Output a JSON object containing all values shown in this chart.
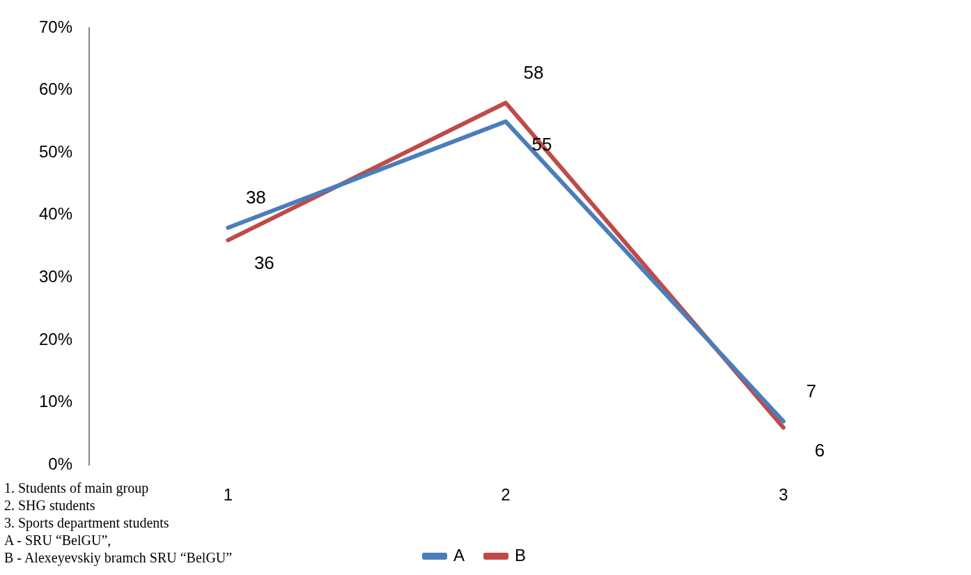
{
  "chart_data": {
    "type": "line",
    "categories": [
      "1",
      "2",
      "3"
    ],
    "series": [
      {
        "name": "A",
        "color": "#4a7ebb",
        "values": [
          38,
          55,
          7
        ]
      },
      {
        "name": "B",
        "color": "#be4b48",
        "values": [
          36,
          58,
          6
        ]
      }
    ],
    "ylim": [
      0,
      70
    ],
    "yticks": [
      {
        "value": 0,
        "label": "0%"
      },
      {
        "value": 10,
        "label": "10%"
      },
      {
        "value": 20,
        "label": "20%"
      },
      {
        "value": 30,
        "label": "30%"
      },
      {
        "value": 40,
        "label": "40%"
      },
      {
        "value": 50,
        "label": "50%"
      },
      {
        "value": 60,
        "label": "60%"
      },
      {
        "value": 70,
        "label": "70%"
      }
    ],
    "grid": false,
    "legend": "bottom",
    "marker": "none",
    "line_style": "solid",
    "data_labels": true,
    "annotations": [
      "1. Students of main group",
      "2. SHG students",
      "3. Sports department students",
      "A -  SRU “BelGU”,",
      "B - Alexeyevskiy bramch SRU “BelGU”"
    ]
  }
}
